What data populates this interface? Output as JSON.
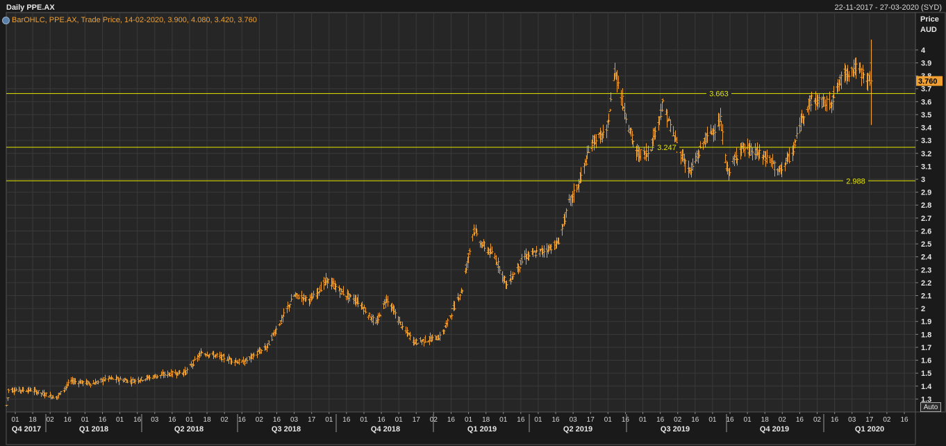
{
  "header": {
    "title": "Daily PPE.AX",
    "date_range": "22-11-2017 - 27-03-2020 (SYD)"
  },
  "legend": {
    "text": "BarOHLC, PPE.AX, Trade Price, 14-02-2020, 3.900, 4.080, 3.420, 3.760",
    "icon": "globe-icon"
  },
  "axis": {
    "price_label": "Price",
    "currency_label": "AUD",
    "auto_label": "Auto"
  },
  "colors": {
    "background": "#1a1a1a",
    "plot_background": "#262626",
    "grid": "#3a3a3a",
    "bars": "#f0a030",
    "levels": "#e6e600",
    "last_price_tag": "#f0a030"
  },
  "chart_data": {
    "type": "ohlc",
    "title": "Daily PPE.AX",
    "ylabel": "Price AUD",
    "ylim": [
      1.2,
      4.15
    ],
    "y_ticks": [
      1.3,
      1.4,
      1.5,
      1.6,
      1.7,
      1.8,
      1.9,
      2,
      2.1,
      2.2,
      2.3,
      2.4,
      2.5,
      2.6,
      2.7,
      2.8,
      2.9,
      3,
      3.1,
      3.2,
      3.3,
      3.4,
      3.5,
      3.6,
      3.7,
      3.8,
      3.9,
      4
    ],
    "y_tick_labels": [
      "1.3",
      "1.4",
      "1.5",
      "1.6",
      "1.7",
      "1.8",
      "1.9",
      "2",
      "2.1",
      "2.2",
      "2.3",
      "2.4",
      "2.5",
      "2.6",
      "2.7",
      "2.8",
      "2.9",
      "3",
      "3.1",
      "3.2",
      "3.3",
      "3.4",
      "3.5",
      "3.6",
      "3.7",
      "3.8",
      "3.9",
      "4"
    ],
    "x_day_labels": [
      "01",
      "18",
      "02",
      "16",
      "01",
      "16",
      "01",
      "16",
      "03",
      "16",
      "01",
      "18",
      "02",
      "16",
      "02",
      "16",
      "03",
      "17",
      "01",
      "16",
      "01",
      "16",
      "01",
      "17",
      "02",
      "16",
      "01",
      "18",
      "01",
      "16",
      "01",
      "16",
      "03",
      "17",
      "01",
      "16",
      "01",
      "16",
      "02",
      "16",
      "01",
      "16",
      "01",
      "18",
      "02",
      "16",
      "02",
      "16",
      "03",
      "17",
      "02",
      "16"
    ],
    "x_quarter_labels": [
      "Q4 2017",
      "Q1 2018",
      "Q2 2018",
      "Q3 2018",
      "Q4 2018",
      "Q1 2019",
      "Q2 2019",
      "Q3 2019",
      "Q4 2019",
      "Q1 2020"
    ],
    "horizontal_levels": [
      {
        "value": 3.663,
        "label": "3.663"
      },
      {
        "value": 3.247,
        "label": "3.247"
      },
      {
        "value": 2.988,
        "label": "2.988"
      }
    ],
    "last_price": {
      "value": 3.76,
      "label": "3.760"
    },
    "last_bar": {
      "date": "14-02-2020",
      "open": 3.9,
      "high": 4.08,
      "low": 3.42,
      "close": 3.76
    },
    "price_path": [
      {
        "date": "2017-11-22",
        "price": 1.25
      },
      {
        "date": "2017-11-24",
        "price": 1.37
      },
      {
        "date": "2017-12-15",
        "price": 1.37
      },
      {
        "date": "2018-01-08",
        "price": 1.31
      },
      {
        "date": "2018-01-22",
        "price": 1.44
      },
      {
        "date": "2018-02-12",
        "price": 1.42
      },
      {
        "date": "2018-02-26",
        "price": 1.46
      },
      {
        "date": "2018-03-20",
        "price": 1.44
      },
      {
        "date": "2018-04-20",
        "price": 1.49
      },
      {
        "date": "2018-05-10",
        "price": 1.51
      },
      {
        "date": "2018-05-25",
        "price": 1.66
      },
      {
        "date": "2018-06-15",
        "price": 1.62
      },
      {
        "date": "2018-07-02",
        "price": 1.58
      },
      {
        "date": "2018-07-25",
        "price": 1.7
      },
      {
        "date": "2018-08-20",
        "price": 2.1
      },
      {
        "date": "2018-09-05",
        "price": 2.07
      },
      {
        "date": "2018-09-20",
        "price": 2.22
      },
      {
        "date": "2018-10-05",
        "price": 2.12
      },
      {
        "date": "2018-10-20",
        "price": 2.05
      },
      {
        "date": "2018-11-05",
        "price": 1.88
      },
      {
        "date": "2018-11-15",
        "price": 2.08
      },
      {
        "date": "2018-12-01",
        "price": 1.84
      },
      {
        "date": "2018-12-12",
        "price": 1.74
      },
      {
        "date": "2019-01-05",
        "price": 1.78
      },
      {
        "date": "2019-01-25",
        "price": 2.15
      },
      {
        "date": "2019-02-05",
        "price": 2.62
      },
      {
        "date": "2019-02-12",
        "price": 2.5
      },
      {
        "date": "2019-02-25",
        "price": 2.4
      },
      {
        "date": "2019-03-08",
        "price": 2.18
      },
      {
        "date": "2019-03-25",
        "price": 2.4
      },
      {
        "date": "2019-04-12",
        "price": 2.45
      },
      {
        "date": "2019-04-25",
        "price": 2.5
      },
      {
        "date": "2019-05-06",
        "price": 2.82
      },
      {
        "date": "2019-05-15",
        "price": 2.97
      },
      {
        "date": "2019-05-28",
        "price": 3.3
      },
      {
        "date": "2019-06-10",
        "price": 3.35
      },
      {
        "date": "2019-06-18",
        "price": 3.85
      },
      {
        "date": "2019-06-28",
        "price": 3.5
      },
      {
        "date": "2019-07-08",
        "price": 3.2
      },
      {
        "date": "2019-07-20",
        "price": 3.2
      },
      {
        "date": "2019-08-02",
        "price": 3.58
      },
      {
        "date": "2019-08-16",
        "price": 3.25
      },
      {
        "date": "2019-08-28",
        "price": 3.05
      },
      {
        "date": "2019-09-10",
        "price": 3.3
      },
      {
        "date": "2019-09-25",
        "price": 3.45
      },
      {
        "date": "2019-10-02",
        "price": 3.05
      },
      {
        "date": "2019-10-15",
        "price": 3.25
      },
      {
        "date": "2019-10-30",
        "price": 3.2
      },
      {
        "date": "2019-11-12",
        "price": 3.15
      },
      {
        "date": "2019-11-18",
        "price": 3.05
      },
      {
        "date": "2019-12-02",
        "price": 3.2
      },
      {
        "date": "2019-12-12",
        "price": 3.5
      },
      {
        "date": "2019-12-20",
        "price": 3.62
      },
      {
        "date": "2020-01-06",
        "price": 3.58
      },
      {
        "date": "2020-01-20",
        "price": 3.82
      },
      {
        "date": "2020-01-31",
        "price": 3.86
      },
      {
        "date": "2020-02-14",
        "price": 3.76
      }
    ]
  }
}
